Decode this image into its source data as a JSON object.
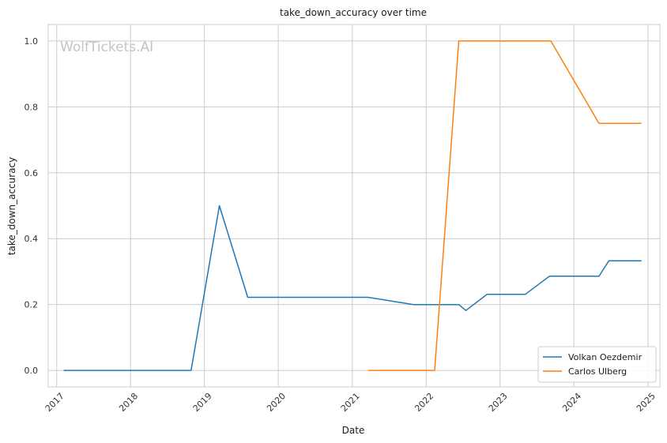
{
  "chart_data": {
    "type": "line",
    "title": "take_down_accuracy over time",
    "xlabel": "Date",
    "ylabel": "take_down_accuracy",
    "watermark": "WolfTickets.AI",
    "xlim": [
      "2016-11-20",
      "2025-03-01"
    ],
    "ylim": [
      -0.05,
      1.05
    ],
    "x_ticks": [
      "2017",
      "2018",
      "2019",
      "2020",
      "2021",
      "2022",
      "2023",
      "2024",
      "2025"
    ],
    "y_ticks": [
      "0.0",
      "0.2",
      "0.4",
      "0.6",
      "0.8",
      "1.0"
    ],
    "grid": true,
    "legend_position": "bottom-right",
    "series": [
      {
        "name": "Volkan Oezdemir",
        "color": "#1f77b4",
        "points": [
          {
            "x": "2017-02-05",
            "y": 0.0
          },
          {
            "x": "2018-10-27",
            "y": 0.0
          },
          {
            "x": "2019-03-16",
            "y": 0.5
          },
          {
            "x": "2019-08-03",
            "y": 0.222
          },
          {
            "x": "2021-03-20",
            "y": 0.222
          },
          {
            "x": "2021-10-30",
            "y": 0.2
          },
          {
            "x": "2022-06-11",
            "y": 0.2
          },
          {
            "x": "2022-07-16",
            "y": 0.182
          },
          {
            "x": "2022-10-29",
            "y": 0.231
          },
          {
            "x": "2023-05-06",
            "y": 0.231
          },
          {
            "x": "2023-09-02",
            "y": 0.286
          },
          {
            "x": "2024-05-04",
            "y": 0.286
          },
          {
            "x": "2024-06-22",
            "y": 0.333
          },
          {
            "x": "2024-11-30",
            "y": 0.333
          }
        ]
      },
      {
        "name": "Carlos Ulberg",
        "color": "#ff7f0e",
        "points": [
          {
            "x": "2021-03-20",
            "y": 0.0
          },
          {
            "x": "2022-02-12",
            "y": 0.0
          },
          {
            "x": "2022-06-11",
            "y": 1.0
          },
          {
            "x": "2023-09-09",
            "y": 1.0
          },
          {
            "x": "2024-05-04",
            "y": 0.75
          },
          {
            "x": "2024-11-30",
            "y": 0.75
          }
        ]
      }
    ]
  }
}
